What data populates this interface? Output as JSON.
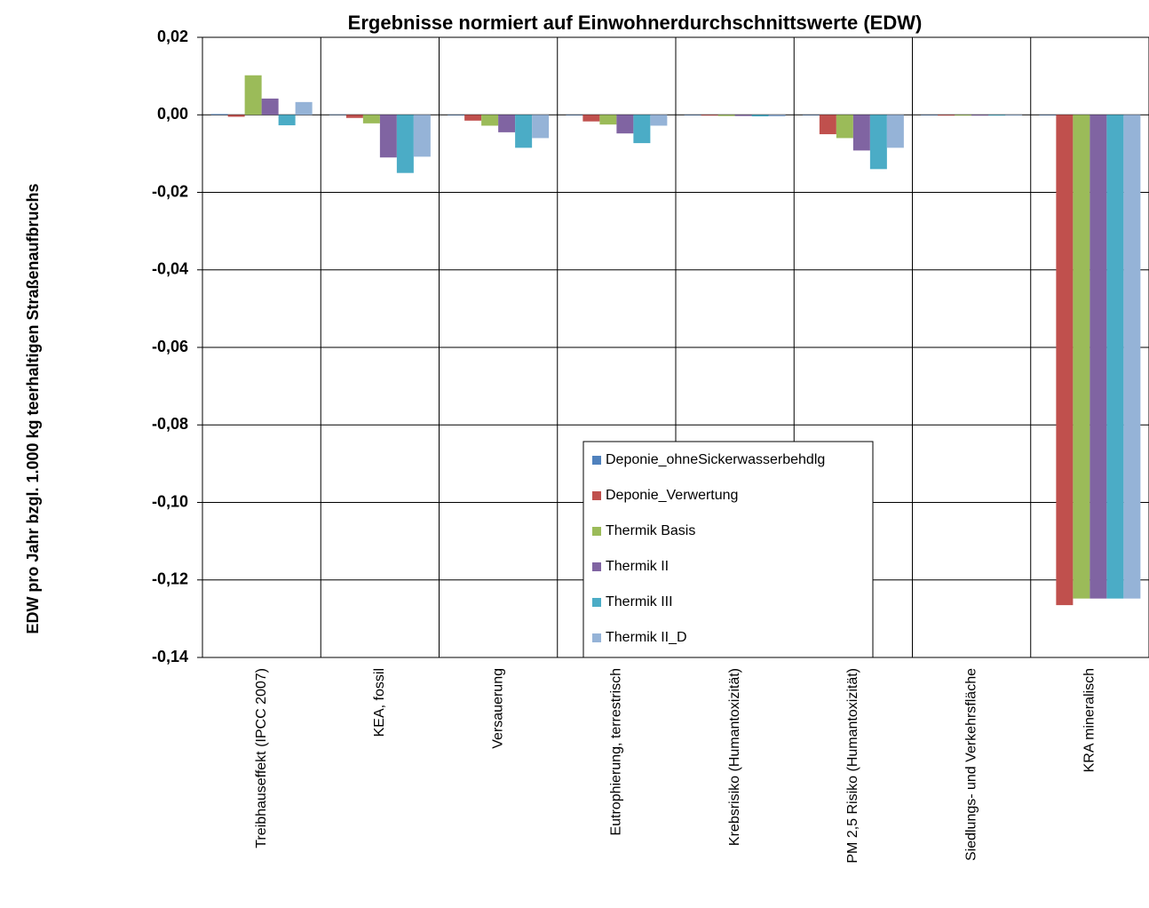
{
  "chart_data": {
    "type": "bar",
    "title": "Ergebnisse normiert auf Einwohnerdurchschnittswerte (EDW)",
    "y_label": "EDW pro Jahr bzgl. 1.000  kg teerhaltigen Straßenaufbruchs",
    "categories": [
      "Treibhauseffekt (IPCC 2007)",
      "KEA, fossil",
      "Versauerung",
      "Eutrophierung, terrestrisch",
      "Krebsrisiko (Humantoxizität)",
      "PM 2,5 Risiko (Humantoxizität)",
      "Siedlungs- und Verkehrsfläche",
      "KRA mineralisch"
    ],
    "series": [
      {
        "name": "Deponie_ohneSickerwasserbehdlg",
        "color": "#4f81bd",
        "values": [
          0.0002,
          0.0001,
          0,
          0,
          0,
          0,
          0,
          0
        ]
      },
      {
        "name": "Deponie_Verwertung",
        "color": "#c0504d",
        "values": [
          -0.0005,
          -0.0008,
          -0.0015,
          -0.0017,
          -0.0002,
          -0.005,
          -0.0002,
          -0.1265
        ]
      },
      {
        "name": "Thermik Basis",
        "color": "#9bbb59",
        "values": [
          0.0102,
          -0.0022,
          -0.0028,
          -0.0025,
          -0.0003,
          -0.006,
          -0.0002,
          -0.1248
        ]
      },
      {
        "name": "Thermik II",
        "color": "#8064a2",
        "values": [
          0.0042,
          -0.011,
          -0.0045,
          -0.0048,
          -0.0003,
          -0.0092,
          -0.0002,
          -0.1248
        ]
      },
      {
        "name": "Thermik III",
        "color": "#4bacc6",
        "values": [
          -0.0027,
          -0.015,
          -0.0085,
          -0.0073,
          -0.0004,
          -0.014,
          -0.0002,
          -0.1248
        ]
      },
      {
        "name": "Thermik II_D",
        "color": "#95b3d7",
        "values": [
          0.0033,
          -0.0108,
          -0.006,
          -0.0028,
          -0.0004,
          -0.0085,
          -0.0002,
          -0.1248
        ]
      }
    ],
    "ylim": [
      -0.14,
      0.02
    ],
    "yticks": [
      {
        "value": -0.14,
        "label": "-0,14"
      },
      {
        "value": -0.12,
        "label": "-0,12"
      },
      {
        "value": -0.1,
        "label": "-0,10"
      },
      {
        "value": -0.08,
        "label": "-0,08"
      },
      {
        "value": -0.06,
        "label": "-0,06"
      },
      {
        "value": -0.04,
        "label": "-0,04"
      },
      {
        "value": -0.02,
        "label": "-0,02"
      },
      {
        "value": 0,
        "label": "0,00"
      },
      {
        "value": 0.02,
        "label": "0,02"
      }
    ],
    "grid": true,
    "legend": "bottom-center"
  }
}
